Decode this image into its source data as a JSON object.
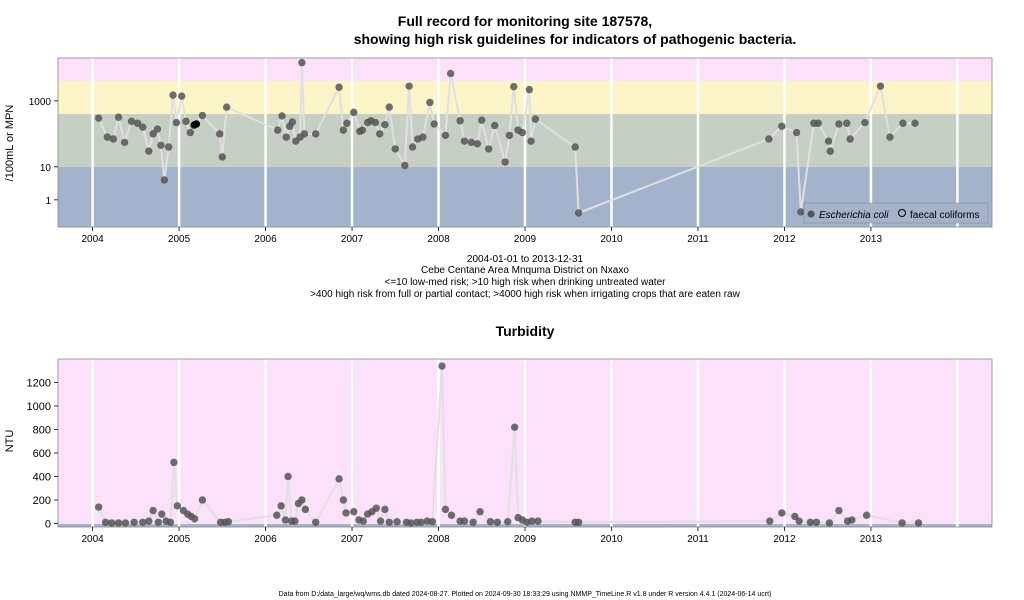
{
  "chart_data": [
    {
      "type": "scatter",
      "title_line1": "Full record for monitoring site 187578,",
      "title_line2": "showing high risk guidelines for indicators of pathogenic bacteria.",
      "ylabel": "/100mL or MPN",
      "y_scale": "log10",
      "ylim": [
        0.15,
        20000
      ],
      "y_ticks": [
        1,
        10,
        1000
      ],
      "y_tick_labels": [
        "1",
        "10",
        "1000"
      ],
      "xlim": [
        2003.6,
        2014.4
      ],
      "x_ticks": [
        2004,
        2005,
        2006,
        2007,
        2008,
        2009,
        2010,
        2011,
        2012,
        2013
      ],
      "x_tick_labels": [
        "2004",
        "2005",
        "2006",
        "2007",
        "2008",
        "2009",
        "2010",
        "2011",
        "2012",
        "2013"
      ],
      "risk_bands": [
        {
          "from": 0.15,
          "to": 10,
          "color": "#a3b3cb"
        },
        {
          "from": 10,
          "to": 400,
          "color": "#c5cfc3"
        },
        {
          "from": 400,
          "to": 4000,
          "color": "#fbf5c8"
        },
        {
          "from": 4000,
          "to": 20000,
          "color": "#fce1fb"
        }
      ],
      "grid": true,
      "legend_position": "bottom-right",
      "legend": [
        "Escherichia coli",
        "faecal coliforms"
      ],
      "series": [
        {
          "name": "Escherichia coli",
          "color": "#555555",
          "points": [
            [
              2004.07,
              300
            ],
            [
              2004.17,
              80
            ],
            [
              2004.24,
              70
            ],
            [
              2004.3,
              320
            ],
            [
              2004.37,
              55
            ],
            [
              2004.45,
              240
            ],
            [
              2004.52,
              210
            ],
            [
              2004.58,
              160
            ],
            [
              2004.65,
              30
            ],
            [
              2004.7,
              100
            ],
            [
              2004.75,
              140
            ],
            [
              2004.79,
              45
            ],
            [
              2004.83,
              4
            ],
            [
              2004.88,
              40
            ],
            [
              2004.93,
              1500
            ],
            [
              2004.97,
              220
            ],
            [
              2005.03,
              1400
            ],
            [
              2005.08,
              240
            ],
            [
              2005.13,
              110
            ],
            [
              2005.17,
              180
            ],
            [
              2005.27,
              360
            ],
            [
              2005.47,
              100
            ],
            [
              2005.5,
              20
            ],
            [
              2005.55,
              650
            ],
            [
              2006.14,
              130
            ],
            [
              2006.19,
              350
            ],
            [
              2006.24,
              80
            ],
            [
              2006.28,
              170
            ],
            [
              2006.31,
              230
            ],
            [
              2006.35,
              60
            ],
            [
              2006.4,
              80
            ],
            [
              2006.42,
              14500
            ],
            [
              2006.45,
              100
            ],
            [
              2006.58,
              100
            ],
            [
              2006.85,
              2600
            ],
            [
              2006.9,
              130
            ],
            [
              2006.94,
              210
            ],
            [
              2007.02,
              450
            ],
            [
              2007.09,
              120
            ],
            [
              2007.12,
              130
            ],
            [
              2007.18,
              220
            ],
            [
              2007.22,
              250
            ],
            [
              2007.27,
              220
            ],
            [
              2007.32,
              100
            ],
            [
              2007.38,
              190
            ],
            [
              2007.43,
              650
            ],
            [
              2007.5,
              35
            ],
            [
              2007.61,
              11
            ],
            [
              2007.66,
              2800
            ],
            [
              2007.7,
              40
            ],
            [
              2007.76,
              70
            ],
            [
              2007.82,
              80
            ],
            [
              2007.9,
              900
            ],
            [
              2007.95,
              200
            ],
            [
              2008.08,
              90
            ],
            [
              2008.14,
              6800
            ],
            [
              2008.25,
              250
            ],
            [
              2008.3,
              60
            ],
            [
              2008.38,
              55
            ],
            [
              2008.45,
              50
            ],
            [
              2008.5,
              260
            ],
            [
              2008.58,
              35
            ],
            [
              2008.65,
              180
            ],
            [
              2008.77,
              14
            ],
            [
              2008.82,
              90
            ],
            [
              2008.87,
              2700
            ],
            [
              2008.92,
              130
            ],
            [
              2008.97,
              110
            ],
            [
              2009.05,
              2200
            ],
            [
              2009.07,
              60
            ],
            [
              2009.12,
              280
            ],
            [
              2009.58,
              40
            ],
            [
              2009.62,
              0.4
            ],
            [
              2011.82,
              70
            ],
            [
              2011.97,
              170
            ],
            [
              2012.14,
              110
            ],
            [
              2012.19,
              0.43
            ],
            [
              2012.34,
              210
            ],
            [
              2012.39,
              210
            ],
            [
              2012.51,
              60
            ],
            [
              2012.53,
              30
            ],
            [
              2012.63,
              200
            ],
            [
              2012.72,
              210
            ],
            [
              2012.76,
              70
            ],
            [
              2012.93,
              220
            ],
            [
              2013.11,
              2800
            ],
            [
              2013.22,
              80
            ],
            [
              2013.37,
              210
            ],
            [
              2013.51,
              210
            ]
          ]
        },
        {
          "name": "faecal coliforms",
          "color": "#000000",
          "points": [
            [
              2005.18,
              190
            ],
            [
              2005.2,
              200
            ]
          ]
        }
      ],
      "subtitle_lines": [
        "2004-01-01 to 2013-12-31",
        "Cebe Centane Area Mnquma District on Nxaxo",
        "<=10 low-med risk; >10 high risk when drinking untreated water",
        ">400 high risk from full or partial contact; >4000 high risk when irrigating crops that are eaten raw"
      ]
    },
    {
      "type": "scatter",
      "title": "Turbidity",
      "ylabel": "NTU",
      "ylim": [
        -30,
        1400
      ],
      "y_ticks": [
        0,
        200,
        400,
        600,
        800,
        1000,
        1200
      ],
      "y_tick_labels": [
        "0",
        "200",
        "400",
        "600",
        "800",
        "1000",
        "1200"
      ],
      "xlim": [
        2003.6,
        2014.4
      ],
      "x_ticks": [
        2004,
        2005,
        2006,
        2007,
        2008,
        2009,
        2010,
        2011,
        2012,
        2013
      ],
      "x_tick_labels": [
        "2004",
        "2005",
        "2006",
        "2007",
        "2008",
        "2009",
        "2010",
        "2011",
        "2012",
        "2013"
      ],
      "background": "#fce1fb",
      "low_band": {
        "from": -30,
        "to": -5,
        "color": "#a3b3cb"
      },
      "grid": true,
      "series": [
        {
          "name": "",
          "color": "#555555",
          "points": [
            [
              2004.07,
              140
            ],
            [
              2004.15,
              10
            ],
            [
              2004.22,
              5
            ],
            [
              2004.3,
              5
            ],
            [
              2004.38,
              5
            ],
            [
              2004.48,
              10
            ],
            [
              2004.58,
              10
            ],
            [
              2004.65,
              20
            ],
            [
              2004.7,
              110
            ],
            [
              2004.76,
              10
            ],
            [
              2004.8,
              80
            ],
            [
              2004.85,
              20
            ],
            [
              2004.9,
              10
            ],
            [
              2004.94,
              520
            ],
            [
              2004.98,
              150
            ],
            [
              2005.05,
              110
            ],
            [
              2005.1,
              80
            ],
            [
              2005.14,
              60
            ],
            [
              2005.18,
              40
            ],
            [
              2005.27,
              200
            ],
            [
              2005.48,
              10
            ],
            [
              2005.53,
              10
            ],
            [
              2005.57,
              15
            ],
            [
              2006.13,
              70
            ],
            [
              2006.18,
              150
            ],
            [
              2006.23,
              30
            ],
            [
              2006.26,
              400
            ],
            [
              2006.3,
              20
            ],
            [
              2006.34,
              20
            ],
            [
              2006.38,
              170
            ],
            [
              2006.42,
              200
            ],
            [
              2006.46,
              120
            ],
            [
              2006.58,
              10
            ],
            [
              2006.85,
              380
            ],
            [
              2006.9,
              200
            ],
            [
              2006.93,
              90
            ],
            [
              2007.02,
              100
            ],
            [
              2007.08,
              30
            ],
            [
              2007.13,
              20
            ],
            [
              2007.18,
              80
            ],
            [
              2007.23,
              100
            ],
            [
              2007.28,
              130
            ],
            [
              2007.33,
              20
            ],
            [
              2007.38,
              120
            ],
            [
              2007.43,
              10
            ],
            [
              2007.52,
              15
            ],
            [
              2007.63,
              10
            ],
            [
              2007.68,
              5
            ],
            [
              2007.75,
              10
            ],
            [
              2007.8,
              10
            ],
            [
              2007.87,
              20
            ],
            [
              2007.93,
              15
            ],
            [
              2008.04,
              1340
            ],
            [
              2008.08,
              120
            ],
            [
              2008.15,
              70
            ],
            [
              2008.25,
              20
            ],
            [
              2008.3,
              20
            ],
            [
              2008.4,
              10
            ],
            [
              2008.48,
              100
            ],
            [
              2008.6,
              15
            ],
            [
              2008.68,
              10
            ],
            [
              2008.8,
              15
            ],
            [
              2008.88,
              820
            ],
            [
              2008.92,
              50
            ],
            [
              2008.97,
              30
            ],
            [
              2009.02,
              10
            ],
            [
              2009.08,
              20
            ],
            [
              2009.15,
              20
            ],
            [
              2009.58,
              10
            ],
            [
              2009.62,
              10
            ],
            [
              2011.83,
              20
            ],
            [
              2011.97,
              90
            ],
            [
              2012.12,
              60
            ],
            [
              2012.17,
              20
            ],
            [
              2012.3,
              10
            ],
            [
              2012.37,
              10
            ],
            [
              2012.52,
              5
            ],
            [
              2012.63,
              110
            ],
            [
              2012.73,
              20
            ],
            [
              2012.78,
              30
            ],
            [
              2012.95,
              70
            ],
            [
              2013.36,
              5
            ],
            [
              2013.55,
              5
            ]
          ]
        }
      ]
    }
  ],
  "footer": "Data from D:/data_large/wq/wms.db dated 2024-08-27. Plotted on 2024-09-30 18:33:29 using NMMP_TimeLine.R v1.8 under R version 4.4.1 (2024-06-14 ucrt)"
}
